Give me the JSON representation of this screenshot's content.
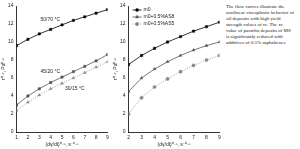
{
  "chart_data": [
    {
      "type": "line",
      "x_label": "(dγ/dt)⁰·⁵, s⁻⁰·⁵",
      "y_label": "τ⁰·⁵, Pa⁰·⁵",
      "x": [
        1,
        2,
        3,
        4,
        5,
        6,
        7,
        8,
        9
      ],
      "series": [
        {
          "name": "50/70 °C",
          "color": "#000000",
          "marker": "square",
          "line_style": "solid",
          "values": [
            9.6,
            10.3,
            10.9,
            11.4,
            11.9,
            12.4,
            12.8,
            13.2,
            13.6
          ]
        },
        {
          "name": "45/20 °C",
          "color": "#555555",
          "marker": "square",
          "line_style": "solid",
          "values": [
            3.0,
            4.0,
            4.8,
            5.5,
            6.1,
            6.7,
            7.3,
            7.9,
            8.6
          ]
        },
        {
          "name": "30/15 °C",
          "color": "#888888",
          "marker": "triangle",
          "line_style": "dotted",
          "values": [
            2.4,
            3.3,
            4.1,
            4.8,
            5.4,
            6.0,
            6.6,
            7.2,
            7.8
          ]
        }
      ],
      "xlim": [
        1,
        9
      ],
      "xticks": [
        1,
        2,
        3,
        4,
        5,
        6,
        7,
        8,
        9
      ],
      "ylim": [
        0,
        14
      ],
      "yticks": [
        0,
        2,
        4,
        6,
        8,
        10,
        12,
        14
      ],
      "grid": false
    },
    {
      "type": "line",
      "x_label": "(dγ/dt)⁰·⁵, s⁻⁰·⁵",
      "y_label": "τ⁰·⁵, Pa⁰·⁵",
      "x": [
        2,
        3,
        4,
        5,
        6,
        7,
        8,
        9
      ],
      "series": [
        {
          "name": "m0",
          "color": "#000000",
          "marker": "square",
          "line_style": "solid",
          "values": [
            7.5,
            8.5,
            9.3,
            10.0,
            10.6,
            11.2,
            11.7,
            12.2
          ]
        },
        {
          "name": "m0+0.5%AS8",
          "color": "#555555",
          "marker": "triangle",
          "line_style": "solid",
          "values": [
            4.5,
            6.0,
            7.0,
            7.8,
            8.5,
            9.1,
            9.6,
            10.0
          ]
        },
        {
          "name": "m0+0.5%AS5",
          "color": "#888888",
          "marker": "circle",
          "line_style": "dotted",
          "values": [
            2.0,
            3.8,
            5.0,
            5.9,
            6.7,
            7.4,
            8.0,
            8.5
          ]
        }
      ],
      "xlim": [
        2,
        9
      ],
      "xticks": [
        2,
        3,
        4,
        5,
        6,
        7,
        8,
        9
      ],
      "ylim": [
        0,
        14
      ],
      "yticks": [
        0,
        2,
        4,
        6,
        8,
        10,
        12,
        14
      ],
      "grid": false,
      "legend": "upper left",
      "annotation": "The flow curves illustrate the nonlinear viscoplastic behavior of oil deposits with high yield strength values of τc. The τc value of paraffin deposits of MS is significantly reduced with additives of 0.5% asphaltenes"
    }
  ]
}
